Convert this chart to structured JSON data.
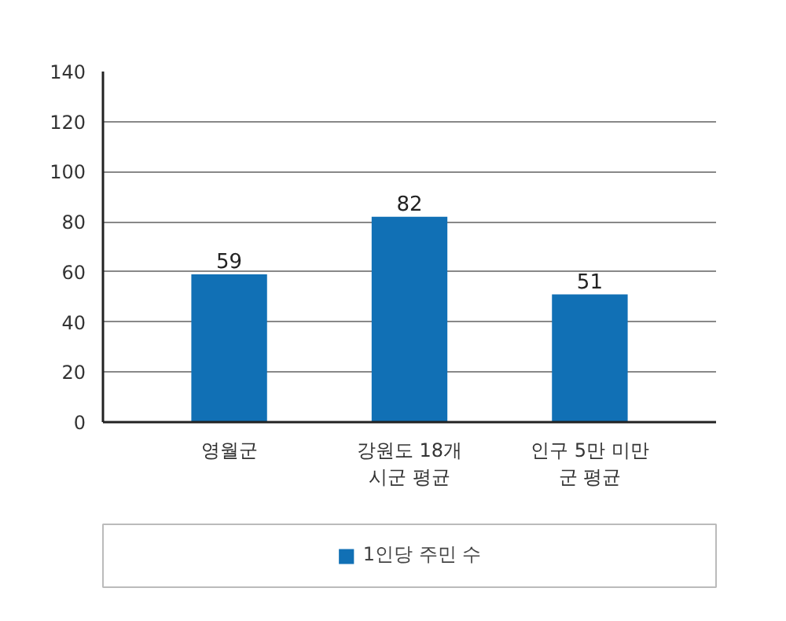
{
  "chart_data": {
    "type": "bar",
    "categories": [
      "영월군",
      "강원도 18개\n시군 평균",
      "인구 5만 미만\n군 평균"
    ],
    "series": [
      {
        "name": "1인당 주민 수",
        "color": "#1170b5",
        "values": [
          59,
          82,
          51
        ]
      }
    ],
    "ylim": [
      0,
      140
    ],
    "yticks": [
      0,
      20,
      40,
      60,
      80,
      100,
      120,
      140
    ],
    "grid": "y",
    "legend": "bottom",
    "data_labels": true
  }
}
